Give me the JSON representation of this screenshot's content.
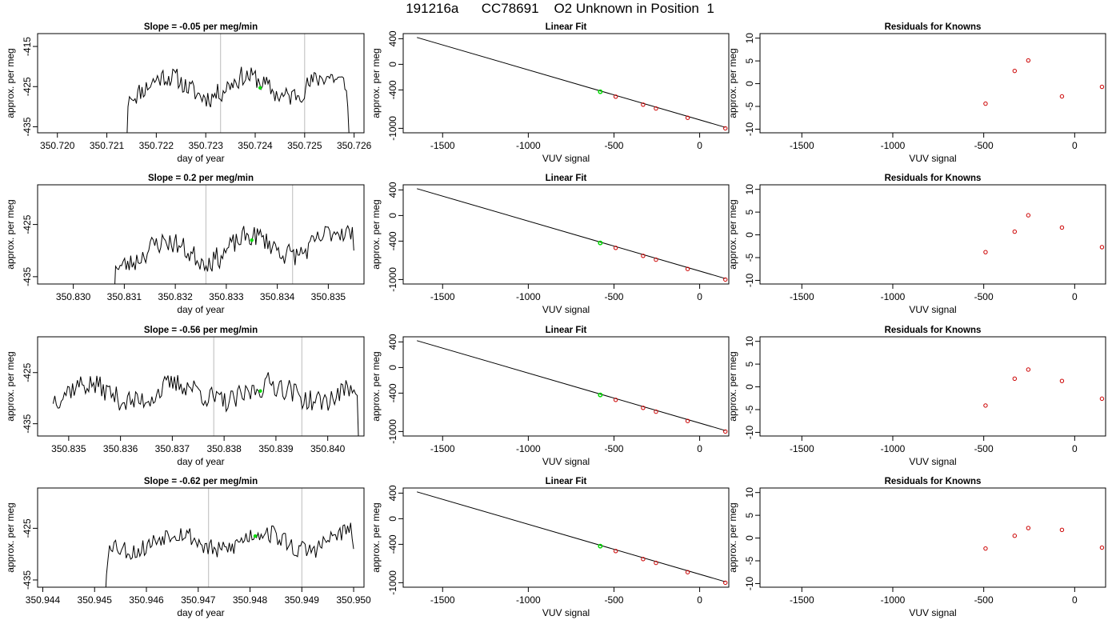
{
  "page_title": "191216a      CC78691    O2 Unknown in Position  1",
  "colors": {
    "trace": "#000000",
    "marker_green": "#00dd00",
    "known_points": "#cc0000",
    "vline": "#bbbbbb",
    "frame": "#000000"
  },
  "chart_data": [
    {
      "type": "line",
      "title": "Slope =  -0.05  per meg/min",
      "xlabel": "day of year",
      "ylabel": "approx. per meg",
      "xlim": [
        350.7196,
        350.7262
      ],
      "ylim": [
        -436.5,
        -411.8
      ],
      "xticks": [
        "350.720",
        "350.721",
        "350.722",
        "350.723",
        "350.724",
        "350.725",
        "350.726"
      ],
      "yticks": [
        "-415",
        "-425",
        "-435"
      ],
      "vlines": [
        350.7233,
        350.725
      ],
      "green_point": {
        "x": 350.7241,
        "y": -425.3
      },
      "trace": {
        "x_start": 350.7214,
        "x_end": 350.7259,
        "n": 160,
        "lead_in": [
          -440,
          -430,
          -427.5,
          -428
        ],
        "tail": [
          -426,
          -430,
          -438
        ],
        "mean": -425.0,
        "wiggle": 3.2,
        "bump_amp": 2.2,
        "seed": 11
      }
    },
    {
      "type": "scatter",
      "title": "Linear Fit",
      "xlabel": "VUV signal",
      "ylabel": "approx. per meg",
      "xlim": [
        -1730,
        170
      ],
      "ylim": [
        -1070,
        480
      ],
      "xticks": [
        -1500,
        -1000,
        -500,
        0
      ],
      "yticks": [
        400,
        0,
        -400,
        -1000
      ],
      "fit_line": {
        "x0": -1650,
        "y0": 420,
        "x1": 150,
        "y1": -985
      },
      "known_points": [
        {
          "x": -490,
          "y": -505
        },
        {
          "x": -330,
          "y": -630
        },
        {
          "x": -255,
          "y": -690
        },
        {
          "x": -70,
          "y": -835
        },
        {
          "x": 150,
          "y": -1000
        }
      ],
      "unknown_point": {
        "x": -580,
        "y": -428
      }
    },
    {
      "type": "scatter",
      "title": "Residuals for Knowns",
      "xlabel": "VUV signal",
      "ylabel": "approx. per meg",
      "xlim": [
        -1730,
        170
      ],
      "ylim": [
        -10.8,
        11
      ],
      "xticks": [
        -1500,
        -1000,
        -500,
        0
      ],
      "yticks": [
        10,
        5,
        0,
        -5,
        -10
      ],
      "points": [
        {
          "x": -490,
          "y": -4.4
        },
        {
          "x": -330,
          "y": 2.8
        },
        {
          "x": -255,
          "y": 5.1
        },
        {
          "x": -70,
          "y": -2.8
        },
        {
          "x": 150,
          "y": -0.7
        }
      ]
    },
    {
      "type": "line",
      "title": "Slope =  0.2  per meg/min",
      "xlabel": "day of year",
      "ylabel": "approx. per meg",
      "xlim": [
        350.8293,
        350.8357
      ],
      "ylim": [
        -436.4,
        -417.4
      ],
      "xticks": [
        "350.830",
        "350.831",
        "350.832",
        "350.833",
        "350.834",
        "350.835"
      ],
      "yticks": [
        "-425",
        "-435"
      ],
      "vlines": [
        350.8326,
        350.8343
      ],
      "green_point": {
        "x": 350.8335,
        "y": -428.0
      },
      "trace": {
        "x_start": 350.8308,
        "x_end": 350.8355,
        "n": 160,
        "lead_in": [
          -440,
          -433
        ],
        "tail": [
          -430
        ],
        "mean": -429.5,
        "wiggle": 2.6,
        "bump_amp": 1.8,
        "seed": 23,
        "ramp": 2.5
      }
    },
    {
      "type": "scatter",
      "title": "Linear Fit",
      "xlabel": "VUV signal",
      "ylabel": "approx. per meg",
      "xlim": [
        -1730,
        170
      ],
      "ylim": [
        -1070,
        480
      ],
      "xticks": [
        -1500,
        -1000,
        -500,
        0
      ],
      "yticks": [
        400,
        0,
        -400,
        -1000
      ],
      "fit_line": {
        "x0": -1650,
        "y0": 420,
        "x1": 150,
        "y1": -985
      },
      "known_points": [
        {
          "x": -490,
          "y": -505
        },
        {
          "x": -330,
          "y": -630
        },
        {
          "x": -255,
          "y": -690
        },
        {
          "x": -70,
          "y": -835
        },
        {
          "x": 150,
          "y": -1000
        }
      ],
      "unknown_point": {
        "x": -580,
        "y": -428
      }
    },
    {
      "type": "scatter",
      "title": "Residuals for Knowns",
      "xlabel": "VUV signal",
      "ylabel": "approx. per meg",
      "xlim": [
        -1730,
        170
      ],
      "ylim": [
        -10.8,
        11
      ],
      "xticks": [
        -1500,
        -1000,
        -500,
        0
      ],
      "yticks": [
        10,
        5,
        0,
        -5,
        -10
      ],
      "points": [
        {
          "x": -490,
          "y": -3.8
        },
        {
          "x": -330,
          "y": 0.7
        },
        {
          "x": -255,
          "y": 4.3
        },
        {
          "x": -70,
          "y": 1.6
        },
        {
          "x": 150,
          "y": -2.7
        }
      ]
    },
    {
      "type": "line",
      "title": "Slope =  -0.56  per meg/min",
      "xlabel": "day of year",
      "ylabel": "approx. per meg",
      "xlim": [
        350.8344,
        350.8407
      ],
      "ylim": [
        -437.4,
        -418.0
      ],
      "xticks": [
        "350.835",
        "350.836",
        "350.837",
        "350.838",
        "350.839",
        "350.840"
      ],
      "yticks": [
        "-425",
        "-435"
      ],
      "vlines": [
        350.8378,
        350.8395
      ],
      "green_point": {
        "x": 350.8387,
        "y": -428.6
      },
      "trace": {
        "x_start": 350.8347,
        "x_end": 350.8406,
        "n": 190,
        "lead_in": [],
        "tail": [
          -440
        ],
        "mean": -429.0,
        "wiggle": 2.8,
        "bump_amp": 1.5,
        "seed": 37
      }
    },
    {
      "type": "scatter",
      "title": "Linear Fit",
      "xlabel": "VUV signal",
      "ylabel": "approx. per meg",
      "xlim": [
        -1730,
        170
      ],
      "ylim": [
        -1070,
        480
      ],
      "xticks": [
        -1500,
        -1000,
        -500,
        0
      ],
      "yticks": [
        400,
        0,
        -400,
        -1000
      ],
      "fit_line": {
        "x0": -1650,
        "y0": 420,
        "x1": 150,
        "y1": -985
      },
      "known_points": [
        {
          "x": -490,
          "y": -505
        },
        {
          "x": -330,
          "y": -630
        },
        {
          "x": -255,
          "y": -690
        },
        {
          "x": -70,
          "y": -835
        },
        {
          "x": 150,
          "y": -1000
        }
      ],
      "unknown_point": {
        "x": -580,
        "y": -428
      }
    },
    {
      "type": "scatter",
      "title": "Residuals for Knowns",
      "xlabel": "VUV signal",
      "ylabel": "approx. per meg",
      "xlim": [
        -1730,
        170
      ],
      "ylim": [
        -10.8,
        11
      ],
      "xticks": [
        -1500,
        -1000,
        -500,
        0
      ],
      "yticks": [
        10,
        5,
        0,
        -5,
        -10
      ],
      "points": [
        {
          "x": -490,
          "y": -4.1
        },
        {
          "x": -330,
          "y": 1.8
        },
        {
          "x": -255,
          "y": 3.8
        },
        {
          "x": -70,
          "y": 1.3
        },
        {
          "x": 150,
          "y": -2.6
        }
      ]
    },
    {
      "type": "line",
      "title": "Slope =  -0.62  per meg/min",
      "xlabel": "day of year",
      "ylabel": "approx. per meg",
      "xlim": [
        350.9439,
        350.9502
      ],
      "ylim": [
        -436.4,
        -417.2
      ],
      "xticks": [
        "350.944",
        "350.945",
        "350.946",
        "350.947",
        "350.948",
        "350.949",
        "350.950"
      ],
      "yticks": [
        "-425",
        "-435"
      ],
      "vlines": [
        350.9472,
        350.949
      ],
      "green_point": {
        "x": 350.9481,
        "y": -426.5
      },
      "trace": {
        "x_start": 350.9452,
        "x_end": 350.95,
        "n": 165,
        "lead_in": [
          -440,
          -434,
          -431
        ],
        "tail": [
          -429
        ],
        "mean": -427.5,
        "wiggle": 2.4,
        "bump_amp": 1.6,
        "seed": 53
      }
    },
    {
      "type": "scatter",
      "title": "Linear Fit",
      "xlabel": "VUV signal",
      "ylabel": "approx. per meg",
      "xlim": [
        -1730,
        170
      ],
      "ylim": [
        -1070,
        480
      ],
      "xticks": [
        -1500,
        -1000,
        -500,
        0
      ],
      "yticks": [
        400,
        0,
        -400,
        -1000
      ],
      "fit_line": {
        "x0": -1650,
        "y0": 420,
        "x1": 150,
        "y1": -985
      },
      "known_points": [
        {
          "x": -490,
          "y": -505
        },
        {
          "x": -330,
          "y": -630
        },
        {
          "x": -255,
          "y": -690
        },
        {
          "x": -70,
          "y": -835
        },
        {
          "x": 150,
          "y": -1000
        }
      ],
      "unknown_point": {
        "x": -580,
        "y": -428
      }
    },
    {
      "type": "scatter",
      "title": "Residuals for Knowns",
      "xlabel": "VUV signal",
      "ylabel": "approx. per meg",
      "xlim": [
        -1730,
        170
      ],
      "ylim": [
        -10.8,
        11
      ],
      "xticks": [
        -1500,
        -1000,
        -500,
        0
      ],
      "yticks": [
        10,
        5,
        0,
        -5,
        -10
      ],
      "points": [
        {
          "x": -490,
          "y": -2.3
        },
        {
          "x": -330,
          "y": 0.5
        },
        {
          "x": -255,
          "y": 2.2
        },
        {
          "x": -70,
          "y": 1.8
        },
        {
          "x": 150,
          "y": -2.1
        }
      ]
    }
  ]
}
